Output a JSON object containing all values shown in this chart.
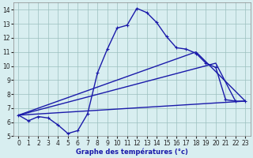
{
  "xlabel": "Graphe des températures (°c)",
  "xlim": [
    -0.5,
    23.5
  ],
  "ylim": [
    5,
    14.5
  ],
  "yticks": [
    5,
    6,
    7,
    8,
    9,
    10,
    11,
    12,
    13,
    14
  ],
  "xticks": [
    0,
    1,
    2,
    3,
    4,
    5,
    6,
    7,
    8,
    9,
    10,
    11,
    12,
    13,
    14,
    15,
    16,
    17,
    18,
    19,
    20,
    21,
    22,
    23
  ],
  "background_color": "#d8eef0",
  "line_color": "#1a1aaa",
  "grid_color": "#9bbfbf",
  "lines": [
    {
      "x": [
        0,
        1,
        2,
        3,
        4,
        5,
        6,
        7,
        8,
        9,
        10,
        11,
        12,
        13,
        14,
        15,
        16,
        17,
        18,
        19,
        20,
        21,
        22,
        23
      ],
      "y": [
        6.5,
        6.1,
        6.4,
        6.3,
        5.8,
        5.2,
        5.4,
        6.6,
        9.5,
        11.2,
        12.7,
        12.9,
        14.1,
        13.8,
        13.1,
        12.1,
        11.3,
        11.2,
        10.9,
        10.2,
        9.9,
        7.6,
        7.5,
        7.5
      ],
      "has_markers": true
    },
    {
      "x": [
        0,
        18,
        23
      ],
      "y": [
        6.5,
        11.0,
        7.5
      ],
      "has_markers": false
    },
    {
      "x": [
        0,
        20,
        22
      ],
      "y": [
        6.5,
        10.2,
        7.5
      ],
      "has_markers": false
    },
    {
      "x": [
        0,
        23
      ],
      "y": [
        6.5,
        7.5
      ],
      "has_markers": false
    }
  ],
  "linewidth": 1.0,
  "markersize": 3.5,
  "tick_fontsize": 5.5
}
